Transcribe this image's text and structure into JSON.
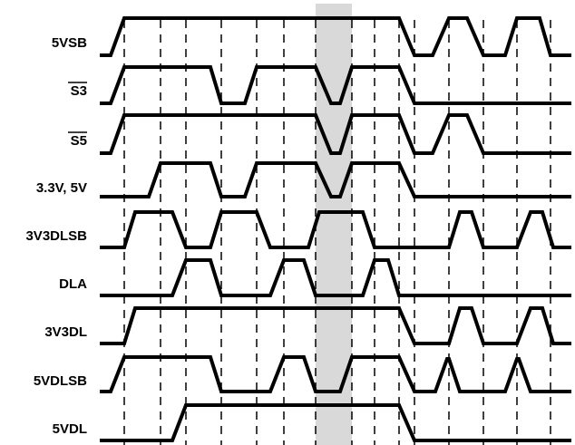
{
  "colors": {
    "waveform": "#000000",
    "highlight": "#d9d9d9",
    "gridline": "#000000"
  },
  "signals": [
    {
      "label": "5VSB",
      "overline": false,
      "low_after": []
    },
    {
      "label": "S3",
      "overline": true
    },
    {
      "label": "S5",
      "overline": true
    },
    {
      "label": "3.3V, 5V",
      "overline": false
    },
    {
      "label": "3V3DLSB",
      "overline": false
    },
    {
      "label": "DLA",
      "overline": false
    },
    {
      "label": "3V3DL",
      "overline": false
    },
    {
      "label": "5VDLSB",
      "overline": false
    },
    {
      "label": "5VDL",
      "overline": false
    }
  ]
}
